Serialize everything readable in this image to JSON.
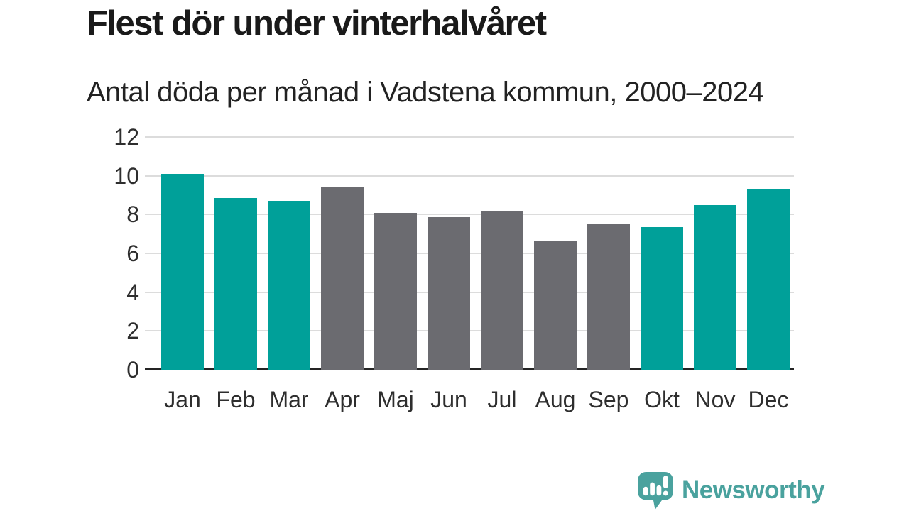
{
  "title": "Flest dör under vinterhalvåret",
  "subtitle": "Antal döda per månad i Vadstena kommun, 2000–2024",
  "branding": {
    "logo_text": "Newsworthy",
    "logo_icon": "newsworthy-speech-bubble-barchart-icon",
    "brand_color": "#4aa29e"
  },
  "colors": {
    "highlight_bar": "#00a099",
    "regular_bar": "#6b6b70",
    "grid_line": "#dcdcdc",
    "axis_line": "#242424",
    "title_text": "#1a1a1a",
    "tick_text": "#2e2e2e",
    "background": "#ffffff"
  },
  "chart_data": {
    "type": "bar",
    "title": "Flest dör under vinterhalvåret",
    "subtitle": "Antal döda per månad i Vadstena kommun, 2000–2024",
    "categories": [
      "Jan",
      "Feb",
      "Mar",
      "Apr",
      "Maj",
      "Jun",
      "Jul",
      "Aug",
      "Sep",
      "Okt",
      "Nov",
      "Dec"
    ],
    "values": [
      10.1,
      8.85,
      8.7,
      9.45,
      8.1,
      7.85,
      8.2,
      6.65,
      7.5,
      7.35,
      8.5,
      9.3
    ],
    "highlighted": [
      true,
      true,
      true,
      false,
      false,
      false,
      false,
      false,
      false,
      true,
      true,
      true
    ],
    "highlight_meaning": "vinterhalvåret (winter half-year months)",
    "xlabel": "",
    "ylabel": "",
    "ylim": [
      0,
      12
    ],
    "yticks": [
      0,
      2,
      4,
      6,
      8,
      10,
      12
    ],
    "grid": true,
    "legend": false
  }
}
